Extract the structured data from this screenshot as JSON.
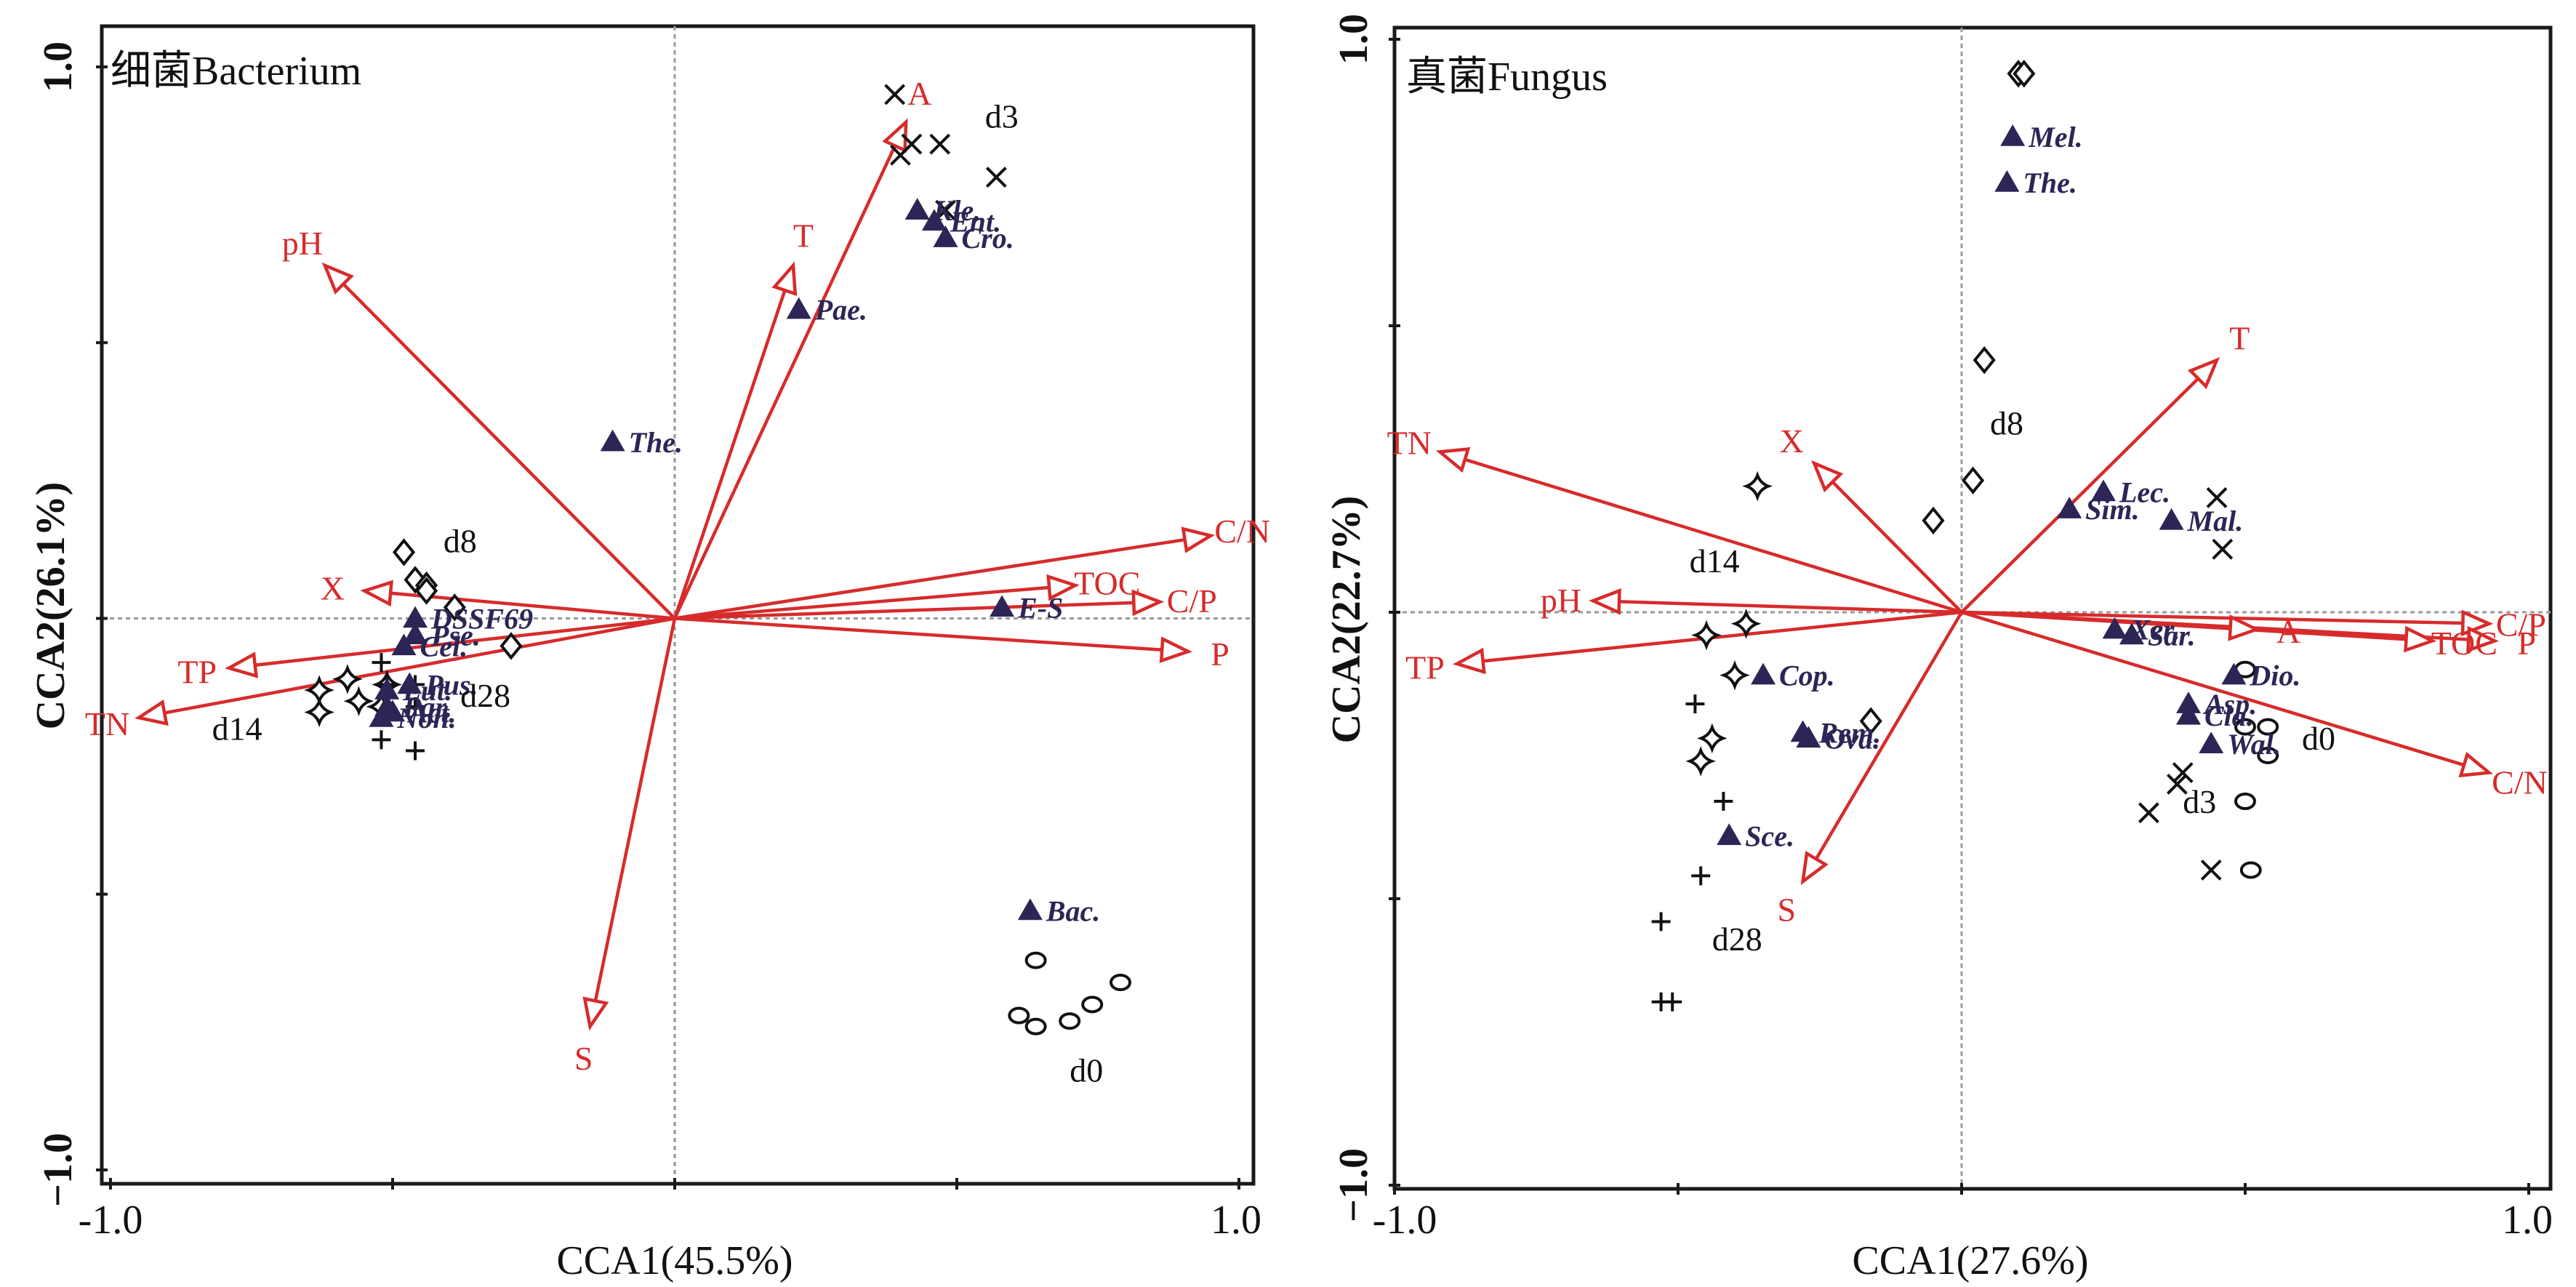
{
  "chart_data": [
    {
      "type": "scatter",
      "subtype": "CCA biplot",
      "title": "细菌Bacterium",
      "xlabel": "CCA1(45.5%)",
      "ylabel": "CCA2(26.1%)",
      "xlim": [
        -1.0,
        1.0
      ],
      "ylim": [
        -1.0,
        1.0
      ],
      "xticks": [
        -1.0,
        -0.5,
        0,
        0.5,
        1.0
      ],
      "xtick_labels": [
        "-1.0",
        "",
        "",
        "",
        "1.0"
      ],
      "yticks": [
        1.0,
        0.5,
        0,
        -0.5,
        -1.0
      ],
      "ytick_labels": [
        "1.0",
        "",
        "",
        "",
        "−1.0"
      ],
      "reference_lines": "dashed at x=0 and y=0",
      "env_vectors": [
        {
          "name": "pH",
          "x": -0.62,
          "y": 0.64
        },
        {
          "name": "T",
          "x": 0.21,
          "y": 0.64
        },
        {
          "name": "A",
          "x": 0.41,
          "y": 0.9
        },
        {
          "name": "C/N",
          "x": 0.95,
          "y": 0.15
        },
        {
          "name": "TOC",
          "x": 0.71,
          "y": 0.06
        },
        {
          "name": "C/P",
          "x": 0.86,
          "y": 0.03
        },
        {
          "name": "P",
          "x": 0.91,
          "y": -0.06
        },
        {
          "name": "X",
          "x": -0.55,
          "y": 0.05
        },
        {
          "name": "TP",
          "x": -0.79,
          "y": -0.09
        },
        {
          "name": "TN",
          "x": -0.95,
          "y": -0.18
        },
        {
          "name": "S",
          "x": -0.15,
          "y": -0.74
        }
      ],
      "taxa": [
        {
          "name": "Kle.",
          "x": 0.43,
          "y": 0.74
        },
        {
          "name": "Ent.",
          "x": 0.46,
          "y": 0.72
        },
        {
          "name": "Cro.",
          "x": 0.48,
          "y": 0.69
        },
        {
          "name": "Pae.",
          "x": 0.22,
          "y": 0.56
        },
        {
          "name": "The.",
          "x": -0.11,
          "y": 0.32
        },
        {
          "name": "E-S",
          "x": 0.58,
          "y": 0.02
        },
        {
          "name": "DSSF69",
          "x": -0.46,
          "y": 0.0
        },
        {
          "name": "Pse.",
          "x": -0.46,
          "y": -0.03
        },
        {
          "name": "Cel.",
          "x": -0.48,
          "y": -0.05
        },
        {
          "name": "Pus.",
          "x": -0.47,
          "y": -0.12
        },
        {
          "name": "Lut.",
          "x": -0.51,
          "y": -0.13
        },
        {
          "name": "Par.",
          "x": -0.51,
          "y": -0.16
        },
        {
          "name": "Act.",
          "x": -0.5,
          "y": -0.17
        },
        {
          "name": "Non.",
          "x": -0.52,
          "y": -0.18
        },
        {
          "name": "Bac.",
          "x": 0.63,
          "y": -0.53
        }
      ],
      "samples": [
        {
          "group": "d3",
          "marker": "x",
          "points": [
            [
              0.39,
              0.95
            ],
            [
              0.42,
              0.86
            ],
            [
              0.47,
              0.86
            ],
            [
              0.4,
              0.84
            ],
            [
              0.57,
              0.8
            ],
            [
              0.48,
              0.74
            ]
          ]
        },
        {
          "group": "d8",
          "marker": "diamond",
          "points": [
            [
              -0.48,
              0.12
            ],
            [
              -0.46,
              0.07
            ],
            [
              -0.44,
              0.06
            ],
            [
              -0.44,
              0.05
            ],
            [
              -0.39,
              0.02
            ],
            [
              -0.29,
              -0.05
            ]
          ]
        },
        {
          "group": "d14",
          "marker": "star4",
          "points": [
            [
              -0.58,
              -0.11
            ],
            [
              -0.63,
              -0.13
            ],
            [
              -0.56,
              -0.15
            ],
            [
              -0.51,
              -0.12
            ],
            [
              -0.63,
              -0.17
            ],
            [
              -0.52,
              -0.16
            ]
          ]
        },
        {
          "group": "d28",
          "marker": "plus",
          "points": [
            [
              -0.52,
              -0.08
            ],
            [
              -0.46,
              -0.12
            ],
            [
              -0.46,
              -0.16
            ],
            [
              -0.52,
              -0.22
            ],
            [
              -0.46,
              -0.24
            ],
            [
              -0.51,
              -0.12
            ]
          ]
        },
        {
          "group": "d0",
          "marker": "circle",
          "points": [
            [
              0.64,
              -0.62
            ],
            [
              0.61,
              -0.72
            ],
            [
              0.64,
              -0.74
            ],
            [
              0.7,
              -0.73
            ],
            [
              0.74,
              -0.7
            ],
            [
              0.79,
              -0.66
            ]
          ]
        }
      ],
      "sample_labels": [
        {
          "text": "d3",
          "x": 0.55,
          "y": 0.89
        },
        {
          "text": "d8",
          "x": -0.41,
          "y": 0.12
        },
        {
          "text": "d28",
          "x": -0.38,
          "y": -0.16
        },
        {
          "text": "d14",
          "x": -0.82,
          "y": -0.22
        },
        {
          "text": "d0",
          "x": 0.7,
          "y": -0.84
        }
      ]
    },
    {
      "type": "scatter",
      "subtype": "CCA biplot",
      "title": "真菌Fungus",
      "xlabel": "CCA1(27.6%)",
      "ylabel": "CCA2(22.7%)",
      "xlim": [
        -1.0,
        1.0
      ],
      "ylim": [
        -1.0,
        1.0
      ],
      "xticks": [
        -1.0,
        -0.5,
        0,
        0.5,
        1.0
      ],
      "xtick_labels": [
        "-1.0",
        "",
        "",
        "",
        "1.0"
      ],
      "yticks": [
        1.0,
        0.5,
        0,
        -0.5,
        -1.0
      ],
      "ytick_labels": [
        "1.0",
        "",
        "",
        "",
        "−1.0"
      ],
      "reference_lines": "dashed at x=0 and y=0",
      "env_vectors": [
        {
          "name": "T",
          "x": 0.45,
          "y": 0.44
        },
        {
          "name": "X",
          "x": -0.26,
          "y": 0.26
        },
        {
          "name": "TN",
          "x": -0.92,
          "y": 0.28
        },
        {
          "name": "pH",
          "x": -0.65,
          "y": 0.02
        },
        {
          "name": "TP",
          "x": -0.89,
          "y": -0.09
        },
        {
          "name": "S",
          "x": -0.28,
          "y": -0.47
        },
        {
          "name": "C/P",
          "x": 0.93,
          "y": -0.02
        },
        {
          "name": "P",
          "x": 0.94,
          "y": -0.05
        },
        {
          "name": "TOC",
          "x": 0.83,
          "y": -0.05
        },
        {
          "name": "C/N",
          "x": 0.93,
          "y": -0.28
        },
        {
          "name": "A",
          "x": 0.52,
          "y": -0.03
        }
      ],
      "taxa": [
        {
          "name": "Mel.",
          "x": 0.09,
          "y": 0.83
        },
        {
          "name": "The.",
          "x": 0.08,
          "y": 0.75
        },
        {
          "name": "Lec.",
          "x": 0.25,
          "y": 0.21
        },
        {
          "name": "Sim.",
          "x": 0.19,
          "y": 0.18
        },
        {
          "name": "Mal.",
          "x": 0.37,
          "y": 0.16
        },
        {
          "name": "Xer.",
          "x": 0.27,
          "y": -0.03
        },
        {
          "name": "Sar.",
          "x": 0.3,
          "y": -0.04
        },
        {
          "name": "Dio.",
          "x": 0.48,
          "y": -0.11
        },
        {
          "name": "Asp.",
          "x": 0.4,
          "y": -0.16
        },
        {
          "name": "Cla.",
          "x": 0.4,
          "y": -0.18
        },
        {
          "name": "Wal.",
          "x": 0.44,
          "y": -0.23
        },
        {
          "name": "Cop.",
          "x": -0.35,
          "y": -0.11
        },
        {
          "name": "Rem.",
          "x": -0.28,
          "y": -0.21
        },
        {
          "name": "Ova.",
          "x": -0.27,
          "y": -0.22
        },
        {
          "name": "Sce.",
          "x": -0.41,
          "y": -0.39
        }
      ],
      "samples": [
        {
          "group": "d8",
          "marker": "diamond",
          "points": [
            [
              0.1,
              0.94
            ],
            [
              0.11,
              0.94
            ],
            [
              0.04,
              0.44
            ],
            [
              0.02,
              0.23
            ],
            [
              -0.05,
              0.16
            ],
            [
              -0.16,
              -0.19
            ]
          ]
        },
        {
          "group": "d14",
          "marker": "star4",
          "points": [
            [
              -0.36,
              0.22
            ],
            [
              -0.45,
              -0.04
            ],
            [
              -0.38,
              -0.02
            ],
            [
              -0.4,
              -0.11
            ],
            [
              -0.44,
              -0.22
            ],
            [
              -0.46,
              -0.26
            ]
          ]
        },
        {
          "group": "d28",
          "marker": "plus",
          "points": [
            [
              -0.47,
              -0.16
            ],
            [
              -0.42,
              -0.33
            ],
            [
              -0.46,
              -0.46
            ],
            [
              -0.53,
              -0.54
            ],
            [
              -0.53,
              -0.68
            ],
            [
              -0.51,
              -0.68
            ]
          ]
        },
        {
          "group": "d3",
          "marker": "x",
          "points": [
            [
              0.45,
              0.2
            ],
            [
              0.46,
              0.11
            ],
            [
              0.39,
              -0.28
            ],
            [
              0.38,
              -0.3
            ],
            [
              0.33,
              -0.35
            ],
            [
              0.44,
              -0.45
            ]
          ]
        },
        {
          "group": "d0",
          "marker": "circle",
          "points": [
            [
              0.5,
              -0.1
            ],
            [
              0.5,
              -0.2
            ],
            [
              0.54,
              -0.2
            ],
            [
              0.54,
              -0.25
            ],
            [
              0.5,
              -0.33
            ],
            [
              0.51,
              -0.45
            ]
          ]
        }
      ],
      "sample_labels": [
        {
          "text": "d8",
          "x": 0.05,
          "y": 0.31
        },
        {
          "text": "d14",
          "x": -0.48,
          "y": 0.07
        },
        {
          "text": "d28",
          "x": -0.44,
          "y": -0.59
        },
        {
          "text": "d3",
          "x": 0.39,
          "y": -0.35
        },
        {
          "text": "d0",
          "x": 0.6,
          "y": -0.24
        }
      ]
    }
  ],
  "colors": {
    "env_vector": "#d72b2b",
    "taxon": "#2d2556",
    "sample": "#111111",
    "reference_line": "#9a9a9a"
  }
}
